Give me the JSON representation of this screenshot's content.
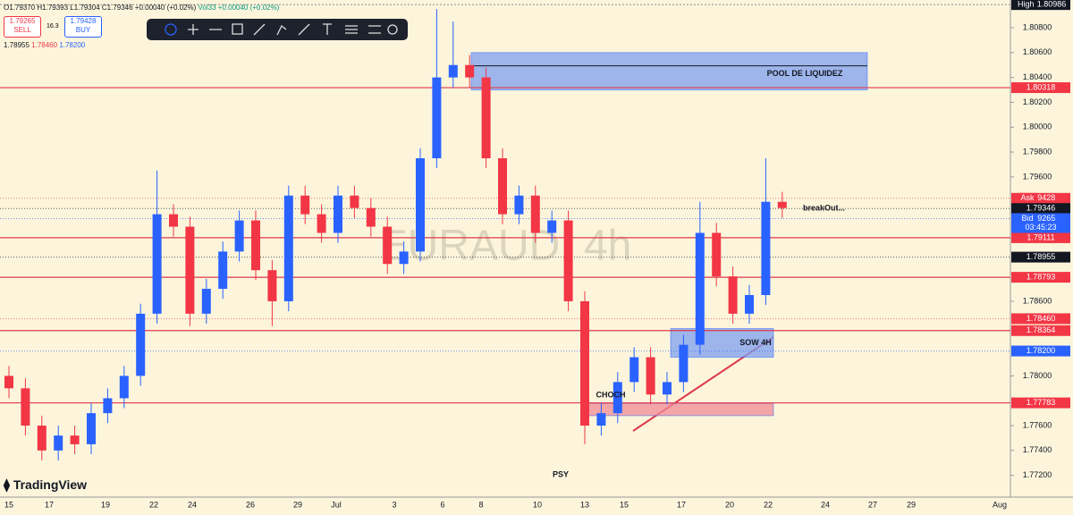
{
  "header": {
    "quote": "O1.79370 H1.79393 L1.79304 C1.79346 +0.00040 (+0.02%)",
    "volume": "Vol33 +0.00040 (+0.02%)"
  },
  "trade_panel": {
    "sell_price": "1.79265",
    "sell": "SELL",
    "spread": "16.3",
    "buy_price": "1.79428",
    "buy": "BUY",
    "levels": [
      "1.78955",
      "1.78460",
      "1.78200"
    ]
  },
  "brand": "TradingView",
  "chart_data": {
    "type": "candlestick",
    "watermark": "EURAUD, 4h",
    "ylim": [
      1.77032,
      1.81023
    ],
    "yticks": [
      {
        "value": 1.808,
        "label": "1.80800"
      },
      {
        "value": 1.806,
        "label": "1.80600"
      },
      {
        "value": 1.804,
        "label": "1.80400"
      },
      {
        "value": 1.802,
        "label": "1.80200"
      },
      {
        "value": 1.8,
        "label": "1.80000"
      },
      {
        "value": 1.798,
        "label": "1.79800"
      },
      {
        "value": 1.796,
        "label": "1.79600"
      },
      {
        "value": 1.786,
        "label": "1.78600"
      },
      {
        "value": 1.78,
        "label": "1.78000"
      },
      {
        "value": 1.776,
        "label": "1.77600"
      },
      {
        "value": 1.774,
        "label": "1.77400"
      },
      {
        "value": 1.772,
        "label": "1.77200"
      }
    ],
    "up_color": "#2962ff",
    "down_color": "#f23645",
    "open": [
      1.78,
      1.779,
      1.776,
      1.774,
      1.7752,
      1.7745,
      1.777,
      1.7782,
      1.78,
      1.785,
      1.793,
      1.792,
      1.785,
      1.787,
      1.79,
      1.7925,
      1.7885,
      1.786,
      1.7945,
      1.793,
      1.7915,
      1.7945,
      1.7935,
      1.792,
      1.789,
      1.79,
      1.7975,
      1.804,
      1.805,
      1.804,
      1.7975,
      1.793,
      1.7945,
      1.7915,
      1.7925,
      1.786,
      1.776,
      1.777,
      1.7795,
      1.7815,
      1.7785,
      1.7795,
      1.7825,
      1.7915,
      1.788,
      1.785,
      1.7865,
      1.794
    ],
    "high": [
      1.7808,
      1.7798,
      1.7768,
      1.776,
      1.776,
      1.7778,
      1.779,
      1.7808,
      1.7858,
      1.7965,
      1.7938,
      1.7928,
      1.7878,
      1.7908,
      1.7933,
      1.7933,
      1.7893,
      1.7953,
      1.7953,
      1.7938,
      1.7953,
      1.7953,
      1.7943,
      1.7928,
      1.7908,
      1.7983,
      1.8095,
      1.8085,
      1.8058,
      1.8048,
      1.7983,
      1.7953,
      1.7953,
      1.7933,
      1.7933,
      1.7868,
      1.7778,
      1.7803,
      1.7823,
      1.7823,
      1.7803,
      1.7833,
      1.794,
      1.7923,
      1.7888,
      1.7873,
      1.7975,
      1.7948
    ],
    "low": [
      1.7782,
      1.7752,
      1.7732,
      1.7732,
      1.7737,
      1.7737,
      1.7762,
      1.7774,
      1.7792,
      1.7842,
      1.7912,
      1.784,
      1.7842,
      1.7862,
      1.7892,
      1.7877,
      1.784,
      1.7852,
      1.7922,
      1.7907,
      1.7907,
      1.7927,
      1.7912,
      1.7882,
      1.7882,
      1.7892,
      1.7967,
      1.8032,
      1.8032,
      1.7967,
      1.7922,
      1.7922,
      1.7907,
      1.7907,
      1.7852,
      1.7745,
      1.7752,
      1.7762,
      1.7787,
      1.7777,
      1.7777,
      1.7787,
      1.7817,
      1.7872,
      1.7842,
      1.7842,
      1.7857,
      1.7927
    ],
    "close": [
      1.779,
      1.776,
      1.774,
      1.7752,
      1.7745,
      1.777,
      1.7782,
      1.78,
      1.785,
      1.793,
      1.792,
      1.785,
      1.787,
      1.79,
      1.7925,
      1.7885,
      1.786,
      1.7945,
      1.793,
      1.7915,
      1.7945,
      1.7935,
      1.792,
      1.789,
      1.79,
      1.7975,
      1.804,
      1.805,
      1.804,
      1.7975,
      1.793,
      1.7945,
      1.7915,
      1.7925,
      1.786,
      1.776,
      1.777,
      1.7795,
      1.7815,
      1.7785,
      1.7795,
      1.7825,
      1.7915,
      1.788,
      1.785,
      1.7865,
      1.794,
      1.7935
    ],
    "x_labels": [
      "15",
      "17",
      "19",
      "22",
      "24",
      "26",
      "29",
      "Jul",
      "3",
      "6",
      "8",
      "10",
      "13",
      "15",
      "17",
      "20",
      "22",
      "24",
      "27",
      "29",
      "Aug"
    ],
    "levels": [
      {
        "value": 1.80318,
        "label": "1.80318"
      },
      {
        "value": 1.79111,
        "label": "1.79111"
      },
      {
        "value": 1.78793,
        "label": "1.78793"
      },
      {
        "value": 1.78364,
        "label": "1.78364"
      },
      {
        "value": 1.77783,
        "label": "1.77783"
      }
    ],
    "high_tag": {
      "name": "High",
      "value": 1.80986,
      "label": "1.80986"
    },
    "price_tags": [
      {
        "value": 1.79428,
        "label": "1.79428",
        "tag": "Ask",
        "color": "#f23645"
      },
      {
        "value": 1.79346,
        "label": "1.79346",
        "color": "#131722"
      },
      {
        "value": 1.79265,
        "label": "1.79265",
        "tag": "Bid",
        "color": "#2962ff",
        "sub": "03:45:23"
      },
      {
        "value": 1.78955,
        "label": "1.78955",
        "color": "#131722"
      },
      {
        "value": 1.7846,
        "label": "1.78460",
        "color": "#f23645"
      },
      {
        "value": 1.782,
        "label": "1.78200",
        "color": "#2962ff"
      }
    ],
    "zones": [
      {
        "label": "POOL DE LIQUIDEZ",
        "top": 1.806,
        "bottom": 1.803,
        "color": "#7f9ff0"
      },
      {
        "label": "SOW 4H",
        "top": 1.7838,
        "bottom": 1.7815,
        "color": "#7f9ff0"
      },
      {
        "top": 1.7778,
        "bottom": 1.7768,
        "color": "#f08a96"
      }
    ],
    "annotations": [
      "CHOCH",
      "PSY",
      "breakOut..."
    ]
  }
}
